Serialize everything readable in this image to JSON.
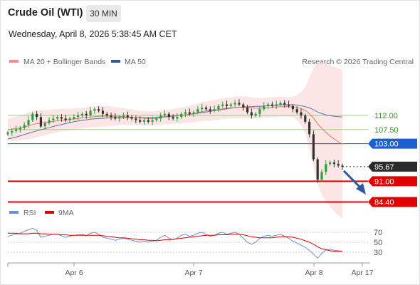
{
  "header": {
    "instrument": "Crude Oil (WTI)",
    "timeframe": "30 MIN",
    "datetime": "Wednesday, April 8, 2026 5:38:45 AM CET"
  },
  "legend": {
    "items": [
      {
        "label": "MA 20 + Bollinger Bands",
        "color": "#f28b8b"
      },
      {
        "label": "MA 50",
        "color": "#2f5a9e"
      }
    ],
    "credit": "Research © 2026 Trading Central"
  },
  "colors": {
    "up": "#2e9e3c",
    "down": "#333333",
    "ma20": "#e07a5f",
    "ma50": "#5a72a8",
    "bands": "#fbdcdc",
    "support": "#e00000",
    "pivot": "#1a5fd0",
    "resist": "#9ad07e",
    "rsi": "#6a8fd8",
    "rsi_ma": "#e00000",
    "arrow": "#2f5a9e"
  },
  "chart_data": [
    {
      "type": "line",
      "name": "price",
      "x_ticks": [
        "Apr 6",
        "Apr 7",
        "Apr 8",
        "Apr 17"
      ],
      "ylim": [
        82,
        132
      ],
      "levels": [
        {
          "value": 112.0,
          "label": "112.00",
          "kind": "resistance"
        },
        {
          "value": 107.5,
          "label": "107.50",
          "kind": "resistance"
        },
        {
          "value": 103.0,
          "label": "103.00",
          "kind": "pivot"
        },
        {
          "value": 95.67,
          "label": "95.67",
          "kind": "last"
        },
        {
          "value": 91.0,
          "label": "91.00",
          "kind": "support"
        },
        {
          "value": 84.4,
          "label": "84.40",
          "kind": "support"
        }
      ],
      "close": [
        106.5,
        107.0,
        107.5,
        108.0,
        109.0,
        110.5,
        112.5,
        111.5,
        108.5,
        109.5,
        110.5,
        111.0,
        111.5,
        111.0,
        110.5,
        111.0,
        111.5,
        112.0,
        112.5,
        112.0,
        113.5,
        114.0,
        113.5,
        112.5,
        112.0,
        111.5,
        111.0,
        111.5,
        112.0,
        111.5,
        111.0,
        110.5,
        110.0,
        110.5,
        110.0,
        110.5,
        111.0,
        112.0,
        112.5,
        111.5,
        111.0,
        111.5,
        112.5,
        113.0,
        112.5,
        113.0,
        114.0,
        114.5,
        114.0,
        113.5,
        114.0,
        115.0,
        115.5,
        115.0,
        115.5,
        116.0,
        115.5,
        114.5,
        113.0,
        112.0,
        112.5,
        114.0,
        115.0,
        115.5,
        115.0,
        115.5,
        116.0,
        115.5,
        115.0,
        114.0,
        113.0,
        112.0,
        110.0,
        106.0,
        98.0,
        91.5,
        94.0,
        96.5,
        97.0,
        96.5,
        96.0,
        95.67
      ],
      "ma20": [
        107.5,
        107.6,
        107.8,
        108.0,
        108.3,
        108.7,
        109.1,
        109.4,
        109.5,
        109.7,
        109.9,
        110.1,
        110.3,
        110.5,
        110.6,
        110.7,
        110.9,
        111.0,
        111.2,
        111.3,
        111.5,
        111.6,
        111.7,
        111.8,
        111.8,
        111.8,
        111.7,
        111.7,
        111.6,
        111.5,
        111.4,
        111.3,
        111.2,
        111.1,
        111.0,
        111.0,
        111.1,
        111.3,
        111.5,
        111.6,
        111.7,
        111.8,
        112.0,
        112.2,
        112.4,
        112.6,
        112.9,
        113.2,
        113.4,
        113.5,
        113.7,
        113.9,
        114.1,
        114.3,
        114.4,
        114.5,
        114.6,
        114.6,
        114.5,
        114.4,
        114.3,
        114.3,
        114.4,
        114.5,
        114.6,
        114.7,
        114.8,
        114.8,
        114.8,
        114.7,
        114.5,
        114.2,
        113.6,
        112.6,
        111.2,
        109.3,
        107.9,
        106.6,
        105.5,
        104.5,
        103.6,
        102.8
      ],
      "ma50": [
        104.5,
        104.8,
        105.1,
        105.5,
        105.9,
        106.3,
        106.7,
        107.1,
        107.4,
        107.8,
        108.1,
        108.5,
        108.8,
        109.1,
        109.4,
        109.7,
        110.0,
        110.2,
        110.4,
        110.6,
        110.8,
        110.9,
        111.0,
        111.1,
        111.2,
        111.2,
        111.2,
        111.2,
        111.3,
        111.3,
        111.3,
        111.3,
        111.3,
        111.3,
        111.3,
        111.3,
        111.4,
        111.5,
        111.6,
        111.7,
        111.8,
        111.9,
        112.0,
        112.2,
        112.3,
        112.5,
        112.7,
        112.9,
        113.1,
        113.3,
        113.5,
        113.7,
        113.9,
        114.1,
        114.3,
        114.5,
        114.6,
        114.7,
        114.8,
        114.8,
        114.9,
        114.9,
        115.0,
        115.1,
        115.2,
        115.3,
        115.4,
        115.4,
        115.4,
        115.4,
        115.3,
        115.1,
        114.8,
        114.4,
        113.8,
        113.1,
        112.6,
        112.2,
        111.9,
        111.7,
        111.6,
        111.5
      ],
      "bb_upper": [
        111.0,
        111.3,
        111.6,
        112.0,
        112.4,
        113.0,
        113.5,
        113.7,
        113.6,
        113.7,
        113.8,
        113.9,
        114.0,
        114.1,
        114.1,
        114.1,
        114.2,
        114.3,
        114.5,
        114.6,
        114.8,
        115.0,
        115.1,
        115.1,
        115.0,
        114.9,
        114.7,
        114.5,
        114.3,
        114.1,
        113.9,
        113.7,
        113.5,
        113.4,
        113.3,
        113.3,
        113.4,
        113.6,
        113.8,
        113.9,
        114.0,
        114.2,
        114.5,
        114.8,
        115.1,
        115.4,
        115.8,
        116.2,
        116.5,
        116.7,
        116.9,
        117.2,
        117.4,
        117.6,
        117.8,
        118.0,
        118.1,
        118.1,
        118.0,
        117.8,
        117.6,
        117.5,
        117.6,
        117.7,
        117.8,
        117.9,
        118.0,
        118.0,
        118.0,
        118.0,
        118.5,
        119.5,
        121.0,
        124.0,
        127.0,
        128.5,
        129.0,
        128.5,
        128.0,
        127.5,
        127.0,
        126.5
      ],
      "bb_lower": [
        104.0,
        103.9,
        104.0,
        104.0,
        104.2,
        104.4,
        104.7,
        105.1,
        105.4,
        105.7,
        106.0,
        106.3,
        106.6,
        106.9,
        107.1,
        107.3,
        107.6,
        107.7,
        107.9,
        108.0,
        108.2,
        108.2,
        108.3,
        108.5,
        108.6,
        108.7,
        108.7,
        108.9,
        108.9,
        108.9,
        108.9,
        108.9,
        108.9,
        108.8,
        108.7,
        108.7,
        108.8,
        109.0,
        109.2,
        109.3,
        109.4,
        109.4,
        109.5,
        109.6,
        109.7,
        109.8,
        110.0,
        110.2,
        110.3,
        110.3,
        110.5,
        110.6,
        110.8,
        111.0,
        111.0,
        111.0,
        111.1,
        111.1,
        111.0,
        111.0,
        111.0,
        111.1,
        111.2,
        111.3,
        111.4,
        111.5,
        111.6,
        111.6,
        111.6,
        111.4,
        110.5,
        108.9,
        106.2,
        101.2,
        95.4,
        90.1,
        86.8,
        84.7,
        83.0,
        81.5,
        80.2,
        79.1
      ]
    },
    {
      "type": "line",
      "name": "rsi",
      "legend": [
        "RSI",
        "9MA"
      ],
      "ylim": [
        0,
        100
      ],
      "y_ticks": [
        70,
        50,
        30
      ],
      "rsi": [
        62,
        64,
        66,
        68,
        72,
        75,
        78,
        74,
        60,
        62,
        64,
        66,
        66,
        63,
        60,
        62,
        64,
        65,
        66,
        63,
        68,
        70,
        66,
        60,
        58,
        56,
        54,
        56,
        58,
        56,
        54,
        52,
        50,
        52,
        50,
        52,
        54,
        60,
        64,
        58,
        55,
        58,
        64,
        66,
        62,
        64,
        68,
        70,
        66,
        62,
        64,
        68,
        70,
        66,
        68,
        70,
        66,
        58,
        50,
        46,
        50,
        58,
        62,
        64,
        62,
        64,
        66,
        62,
        58,
        52,
        48,
        44,
        40,
        34,
        26,
        18,
        28,
        34,
        36,
        34,
        33,
        32
      ],
      "rsi_ma": [
        68,
        68,
        68,
        67,
        67,
        67,
        68,
        68,
        67,
        67,
        66,
        66,
        66,
        65,
        65,
        64,
        64,
        64,
        64,
        64,
        64,
        64,
        64,
        63,
        62,
        61,
        60,
        59,
        59,
        58,
        57,
        56,
        55,
        55,
        54,
        54,
        53,
        54,
        55,
        55,
        56,
        57,
        58,
        59,
        60,
        61,
        62,
        63,
        64,
        64,
        64,
        65,
        65,
        65,
        66,
        66,
        66,
        65,
        63,
        61,
        60,
        59,
        59,
        59,
        59,
        60,
        61,
        61,
        61,
        60,
        58,
        56,
        53,
        50,
        46,
        41,
        37,
        35,
        33,
        32,
        32,
        32
      ]
    }
  ]
}
